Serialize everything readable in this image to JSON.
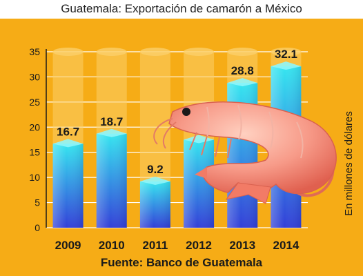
{
  "title": "Guatemala: Exportación de camarón a México",
  "source": "Fuente: Banco de Guatemala",
  "colors": {
    "background": "#f6ac16",
    "bar_top": "#36e6f0",
    "bar_bottom": "#3340d8",
    "ghost": "#fbcf6a",
    "grid": "#ffffff",
    "text": "#1a1a1a"
  },
  "chart_data": {
    "type": "bar",
    "title": "Guatemala: Exportación de camarón a México",
    "categories": [
      "2009",
      "2010",
      "2011",
      "2012",
      "2013",
      "2014"
    ],
    "values": [
      16.7,
      18.7,
      9.2,
      17.5,
      28.8,
      32.1
    ],
    "value_labels": [
      "16.7",
      "18.7",
      "9.2",
      "17.5",
      "28.8",
      "32.1"
    ],
    "ylabel": "En millones de dólares",
    "xlabel": "",
    "ylim": [
      0,
      35
    ],
    "yticks": [
      0,
      5,
      10,
      15,
      20,
      25,
      30,
      35
    ],
    "grid": true,
    "legend": "none"
  },
  "decoration": {
    "image": "shrimp-illustration"
  }
}
